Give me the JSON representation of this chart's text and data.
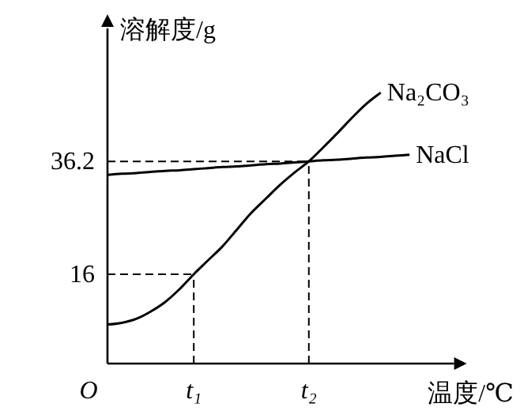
{
  "chart_data": {
    "type": "line",
    "ylabel": "溶解度/g",
    "xlabel": "温度/℃",
    "annotations": [
      "O"
    ],
    "categories": [
      null,
      null,
      null,
      null,
      null,
      null,
      "t₁",
      null,
      null,
      null,
      null,
      null,
      null,
      null,
      "t₂",
      null,
      null,
      null,
      null,
      null,
      null,
      null,
      null,
      null
    ],
    "series": [
      {
        "name": "Na₂CO₃",
        "color": "#000000",
        "values": [
          7,
          7.3,
          8,
          9.3,
          11,
          13.3,
          16,
          18.5,
          21,
          24,
          27,
          29.5,
          32,
          34.2,
          36.2,
          38.7,
          41.3,
          44,
          46.5,
          48.5,
          null,
          null,
          null,
          null
        ]
      },
      {
        "name": "NaCl",
        "color": "#000000",
        "values": [
          33.8,
          34.0,
          34.1,
          34.3,
          34.5,
          34.6,
          34.8,
          35.0,
          35.2,
          35.3,
          35.5,
          35.7,
          35.8,
          36.0,
          36.2,
          36.4,
          36.5,
          36.7,
          36.9,
          37.0,
          37.2,
          37.4,
          null,
          null
        ]
      }
    ],
    "ylim": [
      0,
      60
    ],
    "yticks": [
      16,
      36.2
    ],
    "ref_lines": [
      {
        "axis": "y",
        "value": 16,
        "line_style": "dashed"
      },
      {
        "axis": "y",
        "value": 36.2,
        "line_style": "dashed"
      },
      {
        "axis": "x",
        "value": "t₁",
        "line_style": "dashed"
      },
      {
        "axis": "x",
        "value": "t₂",
        "line_style": "dashed"
      }
    ],
    "grid": false,
    "marker": "none",
    "line_style": "solid"
  }
}
